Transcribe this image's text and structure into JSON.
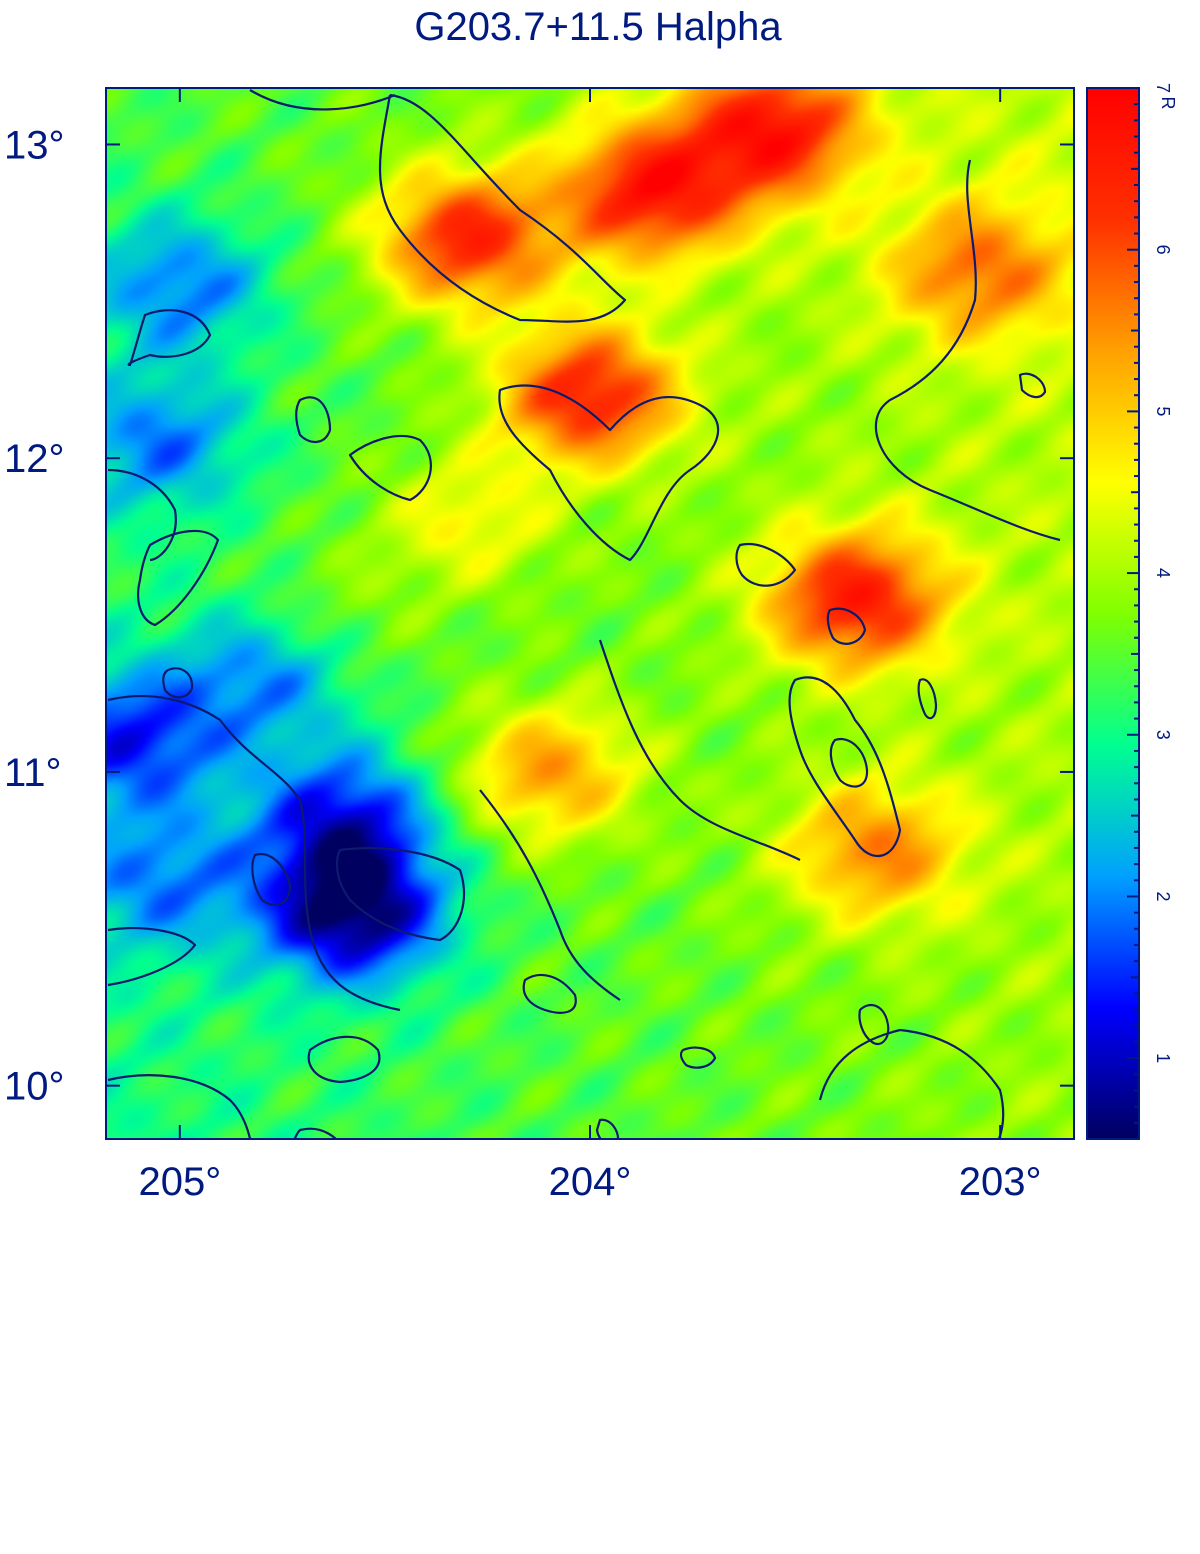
{
  "chart_data": {
    "type": "heatmap",
    "title": "G203.7+11.5 Halpha",
    "xlabel": "",
    "ylabel": "",
    "x_range": [
      205.18,
      202.82
    ],
    "y_range": [
      9.83,
      13.18
    ],
    "x_ticks": [
      {
        "value": 205,
        "label": "205°"
      },
      {
        "value": 204,
        "label": "204°"
      },
      {
        "value": 203,
        "label": "203°"
      }
    ],
    "y_ticks": [
      {
        "value": 13,
        "label": "13°"
      },
      {
        "value": 12,
        "label": "12°"
      },
      {
        "value": 11,
        "label": "11°"
      },
      {
        "value": 10,
        "label": "10°"
      }
    ],
    "colorbar": {
      "unit": "R",
      "min": 0.5,
      "max": 7.0,
      "ticks": [
        1,
        2,
        3,
        4,
        5,
        6,
        7
      ],
      "colormap": [
        "#000060",
        "#0000ff",
        "#00a0ff",
        "#00ff90",
        "#80ff00",
        "#ffff00",
        "#ffa000",
        "#ff3000",
        "#ff0000"
      ]
    },
    "contour_levels": [
      1,
      2,
      3,
      4,
      5
    ],
    "intensity_peaks": [
      {
        "ra": 203.55,
        "dec": 13.05,
        "value": 6.7
      },
      {
        "ra": 203.85,
        "dec": 12.85,
        "value": 6.6
      },
      {
        "ra": 204.3,
        "dec": 12.7,
        "value": 6.4
      },
      {
        "ra": 204.0,
        "dec": 12.2,
        "value": 6.5
      },
      {
        "ra": 203.35,
        "dec": 11.55,
        "value": 6.6
      },
      {
        "ra": 203.05,
        "dec": 12.6,
        "value": 5.8
      },
      {
        "ra": 203.3,
        "dec": 10.75,
        "value": 5.6
      },
      {
        "ra": 204.1,
        "dec": 11.0,
        "value": 5.4
      },
      {
        "ra": 204.3,
        "dec": 11.8,
        "value": 4.6
      },
      {
        "ra": 204.6,
        "dec": 11.5,
        "value": 3.8
      },
      {
        "ra": 205.12,
        "dec": 11.1,
        "value": 1.4
      },
      {
        "ra": 204.58,
        "dec": 10.55,
        "value": 0.5
      },
      {
        "ra": 204.6,
        "dec": 10.85,
        "value": 1.3
      },
      {
        "ra": 205.0,
        "dec": 12.55,
        "value": 1.9
      },
      {
        "ra": 205.05,
        "dec": 12.05,
        "value": 1.9
      },
      {
        "ra": 205.05,
        "dec": 10.65,
        "value": 1.9
      },
      {
        "ra": 204.8,
        "dec": 11.3,
        "value": 2.0
      }
    ]
  }
}
